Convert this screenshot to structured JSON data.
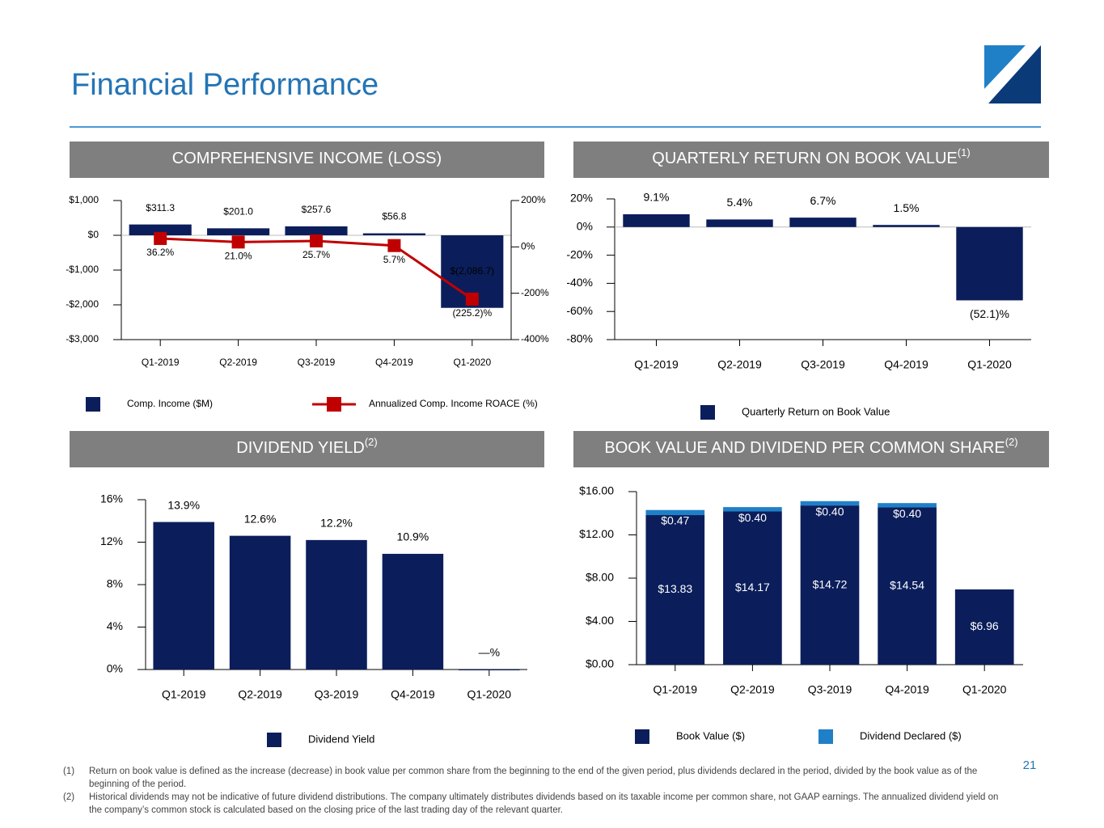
{
  "title": "Financial Performance",
  "page_number": "21",
  "footnotes": [
    {
      "marker": "(1)",
      "text": "Return on book value is defined as the increase (decrease) in book value per common share from the beginning to the end of the given period, plus dividends declared in the period, divided by the book value as of the beginning of the period."
    },
    {
      "marker": "(2)",
      "text": "Historical dividends may not be indicative of future dividend distributions.  The company ultimately distributes dividends based on its taxable income per common share, not GAAP earnings. The annualized dividend yield on the company’s common stock is calculated based on the closing price of the last trading day of the relevant quarter."
    }
  ],
  "chart_data": [
    {
      "type": "bar",
      "header": "COMPREHENSIVE INCOME (LOSS)",
      "categories": [
        "Q1-2019",
        "Q2-2019",
        "Q3-2019",
        "Q4-2019",
        "Q1-2020"
      ],
      "series": [
        {
          "name": "Comp. Income ($M)",
          "color": "#0b1e5b",
          "values": [
            311.3,
            201.0,
            257.6,
            56.8,
            -2086.7
          ],
          "value_labels": [
            "$311.3",
            "$201.0",
            "$257.6",
            "$56.8",
            "$(2,086.7)"
          ]
        },
        {
          "name": "Annualized Comp. Income ROACE (%)",
          "type": "line",
          "axis": "y2",
          "color": "#c00000",
          "values": [
            36.2,
            21.0,
            25.7,
            5.7,
            -225.2
          ],
          "value_labels": [
            "36.2%",
            "21.0%",
            "25.7%",
            "5.7%",
            "(225.2)%"
          ]
        }
      ],
      "ylim": [
        -3000,
        1000
      ],
      "yticks": [
        {
          "value": 1000,
          "label": "$1,000"
        },
        {
          "value": 0,
          "label": "$0"
        },
        {
          "value": -1000,
          "label": "-$1,000"
        },
        {
          "value": -2000,
          "label": "-$2,000"
        },
        {
          "value": -3000,
          "label": "-$3,000"
        }
      ],
      "y2lim": [
        -400,
        200
      ],
      "y2ticks": [
        {
          "value": 200,
          "label": "200%"
        },
        {
          "value": 0,
          "label": "0%"
        },
        {
          "value": -200,
          "label": "-200%"
        },
        {
          "value": -400,
          "label": "-400%"
        }
      ]
    },
    {
      "type": "bar",
      "header": "QUARTERLY RETURN ON BOOK VALUE",
      "header_note": "(1)",
      "categories": [
        "Q1-2019",
        "Q2-2019",
        "Q3-2019",
        "Q4-2019",
        "Q1-2020"
      ],
      "series": [
        {
          "name": "Quarterly Return on Book Value",
          "color": "#0b1e5b",
          "values": [
            9.1,
            5.4,
            6.7,
            1.5,
            -52.1
          ],
          "value_labels": [
            "9.1%",
            "5.4%",
            "6.7%",
            "1.5%",
            "(52.1)%"
          ]
        }
      ],
      "ylim": [
        -80,
        20
      ],
      "yticks": [
        {
          "value": 20,
          "label": "20%"
        },
        {
          "value": 0,
          "label": "0%"
        },
        {
          "value": -20,
          "label": "-20%"
        },
        {
          "value": -40,
          "label": "-40%"
        },
        {
          "value": -60,
          "label": "-60%"
        },
        {
          "value": -80,
          "label": "-80%"
        }
      ]
    },
    {
      "type": "bar",
      "header": "DIVIDEND YIELD",
      "header_note": "(2)",
      "categories": [
        "Q1-2019",
        "Q2-2019",
        "Q3-2019",
        "Q4-2019",
        "Q1-2020"
      ],
      "series": [
        {
          "name": "Dividend Yield",
          "color": "#0b1e5b",
          "values": [
            13.9,
            12.6,
            12.2,
            10.9,
            0
          ],
          "value_labels": [
            "13.9%",
            "12.6%",
            "12.2%",
            "10.9%",
            "—%"
          ]
        }
      ],
      "ylim": [
        0,
        16
      ],
      "yticks": [
        {
          "value": 16,
          "label": "16%"
        },
        {
          "value": 12,
          "label": "12%"
        },
        {
          "value": 8,
          "label": "8%"
        },
        {
          "value": 4,
          "label": "4%"
        },
        {
          "value": 0,
          "label": "0%"
        }
      ]
    },
    {
      "type": "bar",
      "stacked": true,
      "header": "BOOK VALUE AND DIVIDEND PER COMMON SHARE",
      "header_note": "(2)",
      "categories": [
        "Q1-2019",
        "Q2-2019",
        "Q3-2019",
        "Q4-2019",
        "Q1-2020"
      ],
      "series": [
        {
          "name": "Book Value ($)",
          "color": "#0b1e5b",
          "values": [
            13.83,
            14.17,
            14.72,
            14.54,
            6.96
          ],
          "value_labels": [
            "$13.83",
            "$14.17",
            "$14.72",
            "$14.54",
            "$6.96"
          ]
        },
        {
          "name": "Dividend Declared ($)",
          "color": "#1f80c8",
          "values": [
            0.47,
            0.4,
            0.4,
            0.4,
            null
          ],
          "value_labels": [
            "$0.47",
            "$0.40",
            "$0.40",
            "$0.40",
            null
          ]
        }
      ],
      "ylim": [
        0,
        16
      ],
      "yticks": [
        {
          "value": 16,
          "label": "$16.00"
        },
        {
          "value": 12,
          "label": "$12.00"
        },
        {
          "value": 8,
          "label": "$8.00"
        },
        {
          "value": 4,
          "label": "$4.00"
        },
        {
          "value": 0,
          "label": "$0.00"
        }
      ]
    }
  ]
}
